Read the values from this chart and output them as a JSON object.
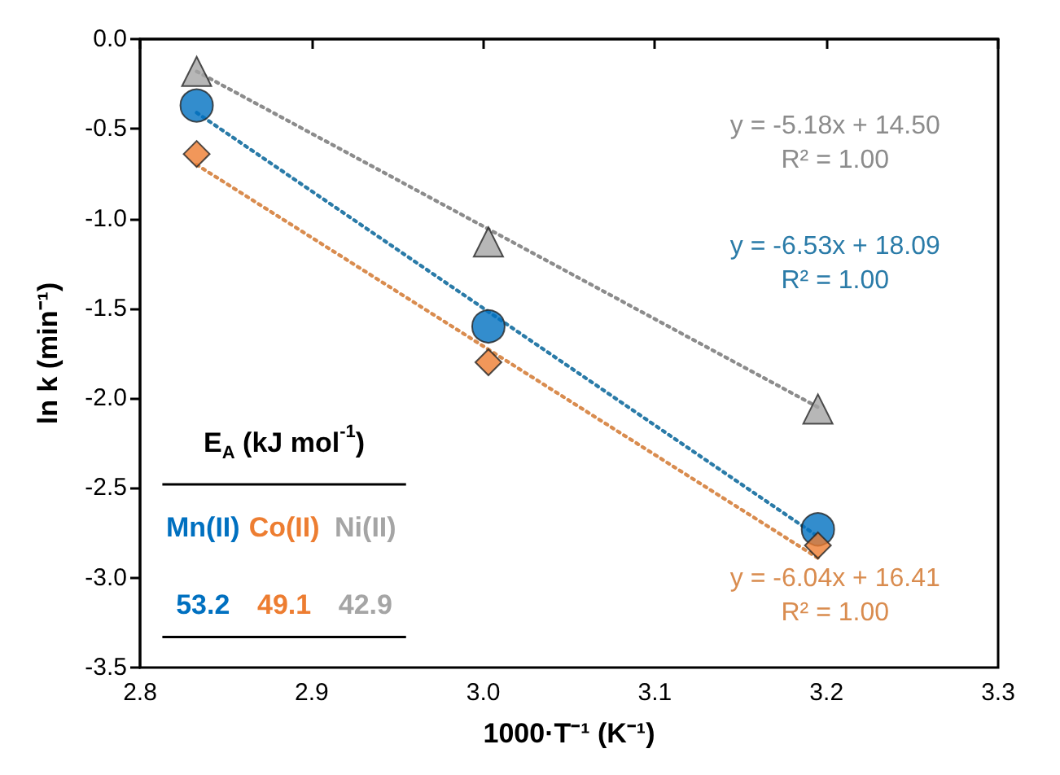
{
  "chart_data": {
    "type": "scatter",
    "xlabel": "1000·T⁻¹ (K⁻¹)",
    "ylabel": "ln k (min⁻¹)",
    "xlim": [
      2.8,
      3.3
    ],
    "xticks": [
      2.8,
      2.9,
      {
        "value": 3,
        "label": "3.0"
      },
      3.1,
      3.2,
      3.3
    ],
    "ylim": [
      -3.5,
      0
    ],
    "yticks": [
      {
        "value": -3.5,
        "label": "-3.5"
      },
      {
        "value": -3,
        "label": "-3.0"
      },
      {
        "value": -2.5,
        "label": "-2.5"
      },
      {
        "value": -2,
        "label": "-2.0"
      },
      {
        "value": -1.5,
        "label": "-1.5"
      },
      {
        "value": -1,
        "label": "-1.0"
      },
      {
        "value": -0.5,
        "label": "-0.5"
      },
      {
        "value": 0,
        "label": "0.0"
      }
    ],
    "grid": false,
    "legend": false,
    "series": [
      {
        "name": "Mn(II)",
        "marker": "circle",
        "color": "#0070c0",
        "x": [
          2.833,
          3.003,
          3.195
        ],
        "values": [
          -0.37,
          -1.6,
          -2.73
        ]
      },
      {
        "name": "Co(II)",
        "marker": "diamond",
        "color": "#ed7d31",
        "x": [
          2.833,
          3.003,
          3.195
        ],
        "values": [
          -0.64,
          -1.8,
          -2.82
        ]
      },
      {
        "name": "Ni(II)",
        "marker": "triangle",
        "color": "#a5a5a5",
        "x": [
          2.833,
          3.003,
          3.195
        ],
        "values": [
          -0.18,
          -1.13,
          -2.06
        ]
      },
      {
        "name": "y = -5.18x + 14.50\nR² = 1.00",
        "type": "line",
        "marker": "none",
        "line_style": "dotted",
        "color": "#8c8c8c",
        "x": [
          2.833,
          3.195
        ],
        "values": [
          -0.18,
          -2.05
        ]
      },
      {
        "name": "y = -6.53x + 18.09\nR² = 1.00",
        "type": "line",
        "marker": "none",
        "line_style": "dotted",
        "color": "#2a7ba8",
        "x": [
          2.833,
          3.195
        ],
        "values": [
          -0.41,
          -2.77
        ]
      },
      {
        "name": "y = -6.04x + 16.41\nR² = 1.00",
        "type": "line",
        "marker": "none",
        "line_style": "dotted",
        "color": "#d98c4f",
        "x": [
          2.833,
          3.195
        ],
        "values": [
          -0.7,
          -2.89
        ]
      }
    ],
    "annotations": [
      "E$_{A}$ (kJ mol$^{-1}$)",
      "53.2",
      "49.1",
      "42.9"
    ]
  }
}
